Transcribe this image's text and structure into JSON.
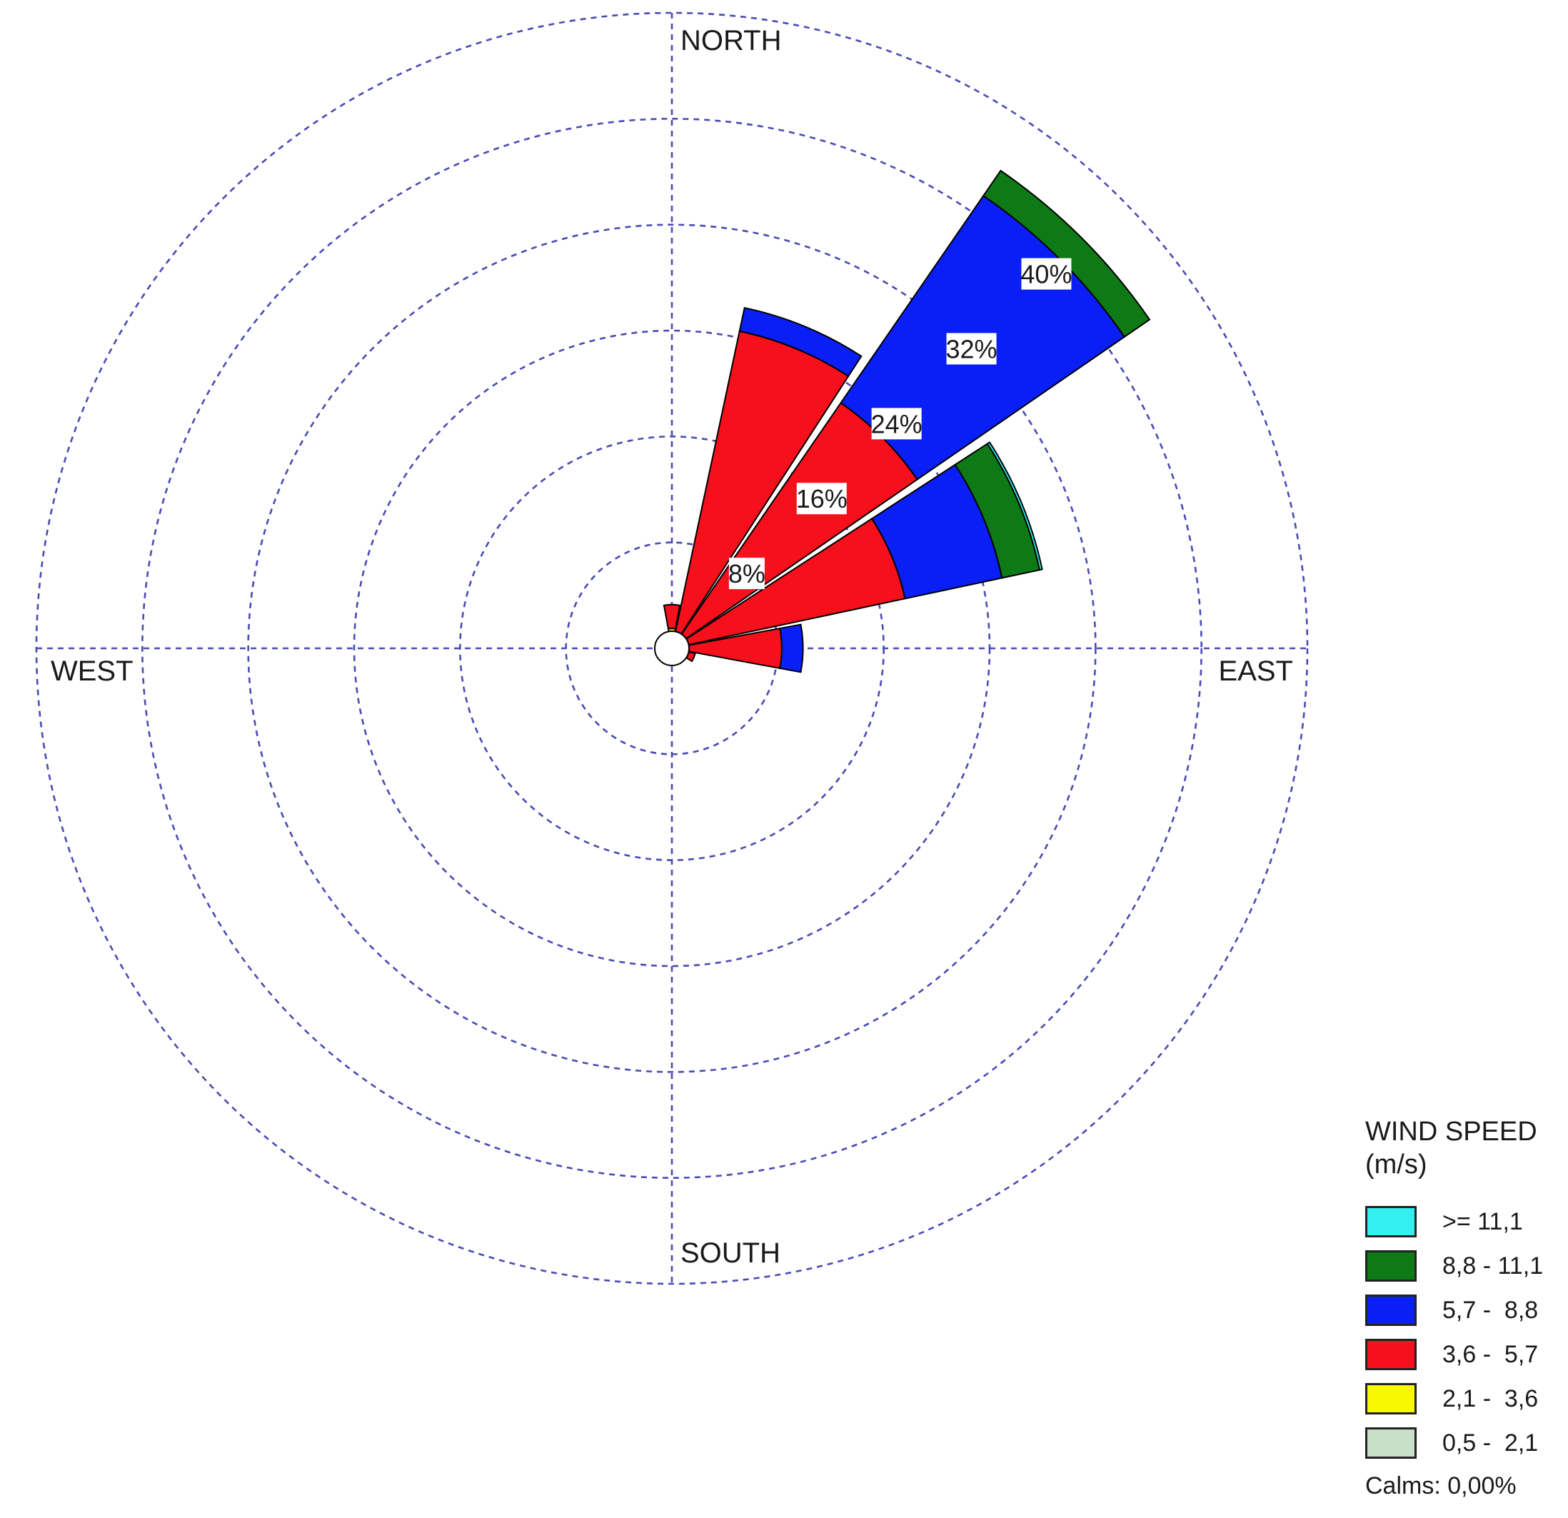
{
  "chart_data": {
    "type": "wind-rose",
    "directions_deg": [
      0,
      22.5,
      45,
      67.5,
      90,
      112.5
    ],
    "direction_labels": {
      "north": "NORTH",
      "east": "EAST",
      "south": "SOUTH",
      "west": "WEST"
    },
    "radial_tick_values": [
      8,
      16,
      24,
      32,
      40
    ],
    "radial_tick_labels": [
      "8%",
      "16%",
      "24%",
      "32%",
      "40%"
    ],
    "radial_tick_bearing_deg": 45,
    "rmax": 48,
    "grid": true,
    "bins": [
      {
        "label": ">= 11,1",
        "color": "#33f0f0"
      },
      {
        "label": "8,8 - 11,1",
        "color": "#0e7a16"
      },
      {
        "label": "5,7 -  8,8",
        "color": "#0a1ff5"
      },
      {
        "label": "3,6 -  5,7",
        "color": "#f5101c"
      },
      {
        "label": "2,1 -  3,6",
        "color": "#f8f800"
      },
      {
        "label": "0,5 -  2,1",
        "color": "#c8dfc8"
      }
    ],
    "series": [
      {
        "direction_deg": 0,
        "cumulative": [
          0.5,
          1.5,
          3.3,
          3.3,
          3.3,
          3.3
        ]
      },
      {
        "direction_deg": 22.5,
        "cumulative": [
          0.5,
          1.3,
          24.5,
          26.3,
          26.3,
          26.3
        ]
      },
      {
        "direction_deg": 45,
        "cumulative": [
          0.5,
          1.0,
          22.5,
          41.5,
          43.8,
          43.8
        ]
      },
      {
        "direction_deg": 67.5,
        "cumulative": [
          0.5,
          1.1,
          18.0,
          25.5,
          28.4,
          28.6
        ]
      },
      {
        "direction_deg": 90,
        "cumulative": [
          0.5,
          0.7,
          8.3,
          9.9,
          9.9,
          9.9
        ]
      },
      {
        "direction_deg": 112.5,
        "cumulative": [
          0.5,
          0.6,
          1.8,
          1.8,
          1.8,
          1.8
        ]
      }
    ],
    "legend_placement": "bottom-right"
  },
  "legend": {
    "title_line1": "WIND SPEED",
    "title_line2": "(m/s)",
    "calms": "Calms: 0,00%"
  }
}
